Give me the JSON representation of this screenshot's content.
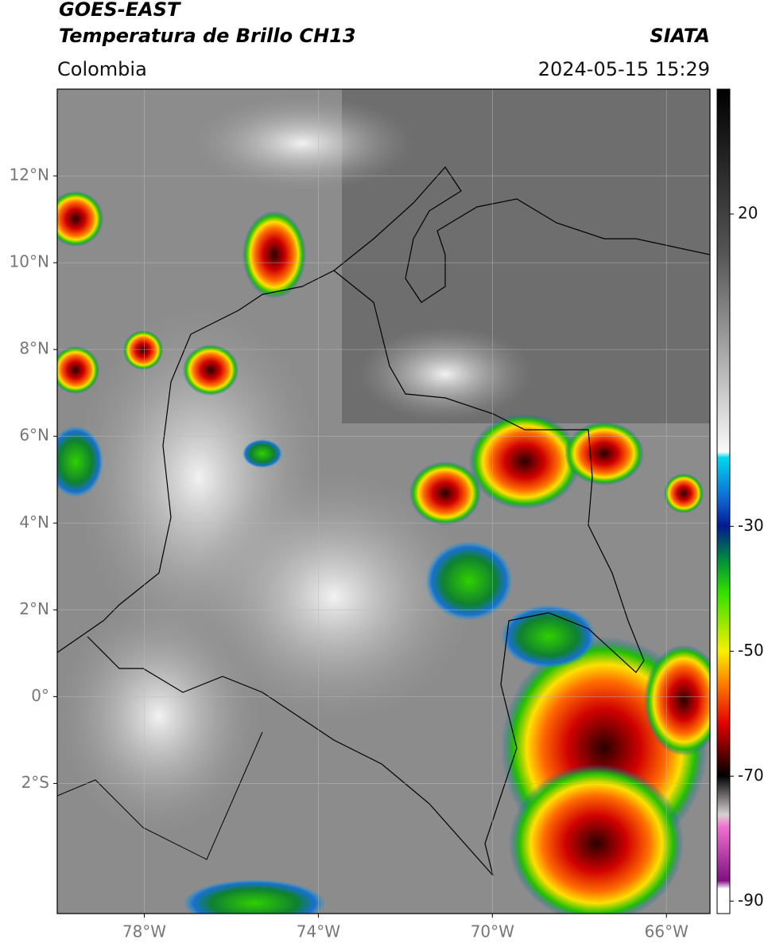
{
  "header": {
    "title": "GOES-EAST",
    "subtitle": "Temperatura de Brillo CH13",
    "source": "SIATA",
    "region": "Colombia",
    "datetime": "2024-05-15 15:29"
  },
  "map": {
    "lonlim": [
      -80,
      -65
    ],
    "latlim": [
      -5,
      14
    ],
    "lonticks": [
      {
        "value": -78,
        "label": "78°W"
      },
      {
        "value": -74,
        "label": "74°W"
      },
      {
        "value": -70,
        "label": "70°W"
      },
      {
        "value": -66,
        "label": "66°W"
      }
    ],
    "latticks": [
      {
        "value": 12,
        "label": "12°N"
      },
      {
        "value": 10,
        "label": "10°N"
      },
      {
        "value": 8,
        "label": "8°N"
      },
      {
        "value": 6,
        "label": "6°N"
      },
      {
        "value": 4,
        "label": "4°N"
      },
      {
        "value": 2,
        "label": "2°N"
      },
      {
        "value": 0,
        "label": "0°"
      },
      {
        "value": -2,
        "label": "2°S"
      }
    ],
    "grid": true
  },
  "colorbar": {
    "clim": [
      -92,
      40
    ],
    "ticks": [
      20,
      -30,
      -50,
      -70,
      -90
    ]
  }
}
